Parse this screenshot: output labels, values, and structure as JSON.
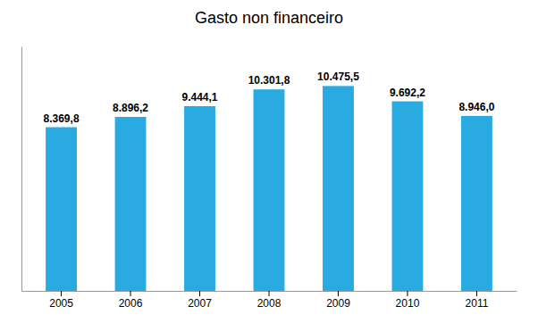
{
  "chart_data": {
    "type": "bar",
    "title": "Gasto non financeiro",
    "categories": [
      "2005",
      "2006",
      "2007",
      "2008",
      "2009",
      "2010",
      "2011"
    ],
    "values": [
      8369.8,
      8896.2,
      9444.1,
      10301.8,
      10475.5,
      9692.2,
      8946.0
    ],
    "value_labels": [
      "8.369,8",
      "8.896,2",
      "9.444,1",
      "10.301,8",
      "10.475,5",
      "9.692,2",
      "8.946,0"
    ],
    "data_labels": true,
    "color": "#29ABE2",
    "ylim": [
      0,
      12500
    ],
    "tick_labels": "x",
    "grid": false
  }
}
